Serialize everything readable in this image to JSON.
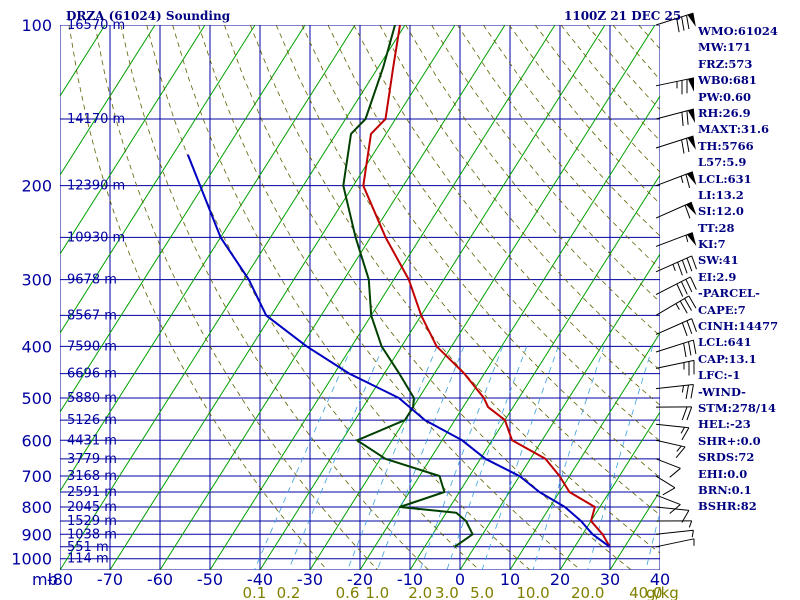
{
  "header": {
    "title": "DRZA (61024) Sounding",
    "time": "1100Z 21 DEC 25"
  },
  "params": [
    "WMO:61024",
    "MW:171",
    "FRZ:573",
    "WB0:681",
    "PW:0.60",
    "RH:26.9",
    "MAXT:31.6",
    "TH:5766",
    "L57:5.9",
    "LCL:631",
    "LI:13.2",
    "SI:12.0",
    "TT:28",
    "KI:7",
    "SW:41",
    "EI:2.9",
    "-PARCEL-",
    "CAPE:7",
    "CINH:14477",
    "LCL:641",
    "CAP:13.1",
    "LFC:-1",
    "-WIND-",
    "STM:278/14",
    "HEL:-23",
    "SHR+:0.0",
    "SRDS:72",
    "EHI:0.0",
    "BRN:0.1",
    "BSHR:82"
  ],
  "colors": {
    "grid": "#0000a0",
    "isotherm": "#00a000",
    "dry_adiabat": "#606000",
    "mixing_ratio": "#3aa0e0",
    "temperature": "#c00000",
    "dewpoint": "#004000",
    "parcel": "#0000c0",
    "axis_text": "#0000a0",
    "mixing_label": "#808000"
  },
  "chart_data": {
    "type": "skew-t",
    "x_unit_label": "mb",
    "pressure_ticks": [
      "100",
      "200",
      "300",
      "400",
      "500",
      "600",
      "700",
      "800",
      "900",
      "1000"
    ],
    "temp_ticks": [
      "-80",
      "-70",
      "-60",
      "-50",
      "-40",
      "-30",
      "-20",
      "-10",
      "0",
      "10",
      "20",
      "30",
      "40"
    ],
    "temp_range": [
      -80,
      40
    ],
    "mixing_ratio_labels": [
      "0.1",
      "0.2",
      "0.6",
      "1.0",
      "2.0",
      "3.0",
      "5.0",
      "10.0",
      "20.0",
      "40.0"
    ],
    "mixing_ratio_unit": "g/kg",
    "height_labels": [
      {
        "p": 100,
        "label": "16570 m"
      },
      {
        "p": 150,
        "label": "14170 m"
      },
      {
        "p": 200,
        "label": "12390 m"
      },
      {
        "p": 250,
        "label": "10930 m"
      },
      {
        "p": 300,
        "label": "9678 m"
      },
      {
        "p": 350,
        "label": "8567 m"
      },
      {
        "p": 400,
        "label": "7590 m"
      },
      {
        "p": 450,
        "label": "6696 m"
      },
      {
        "p": 500,
        "label": "5880 m"
      },
      {
        "p": 550,
        "label": "5126 m"
      },
      {
        "p": 600,
        "label": "4431 m"
      },
      {
        "p": 650,
        "label": "3779 m"
      },
      {
        "p": 700,
        "label": "3168 m"
      },
      {
        "p": 750,
        "label": "2591 m"
      },
      {
        "p": 800,
        "label": "2045 m"
      },
      {
        "p": 850,
        "label": "1529 m"
      },
      {
        "p": 900,
        "label": "1038 m"
      },
      {
        "p": 950,
        "label": "551 m"
      },
      {
        "p": 1000,
        "label": "114 m"
      }
    ],
    "series": [
      {
        "key": "temperature",
        "points": [
          [
            100,
            -81
          ],
          [
            120,
            -77
          ],
          [
            150,
            -72
          ],
          [
            160,
            -73
          ],
          [
            200,
            -68
          ],
          [
            250,
            -57
          ],
          [
            300,
            -47
          ],
          [
            350,
            -40
          ],
          [
            400,
            -33
          ],
          [
            450,
            -24
          ],
          [
            500,
            -17
          ],
          [
            520,
            -15
          ],
          [
            550,
            -10
          ],
          [
            600,
            -6
          ],
          [
            650,
            3
          ],
          [
            700,
            8
          ],
          [
            750,
            12
          ],
          [
            800,
            19
          ],
          [
            850,
            20
          ],
          [
            900,
            24
          ],
          [
            950,
            27
          ]
        ]
      },
      {
        "key": "dewpoint",
        "points": [
          [
            100,
            -82
          ],
          [
            120,
            -79
          ],
          [
            150,
            -76
          ],
          [
            160,
            -77
          ],
          [
            200,
            -72
          ],
          [
            250,
            -63
          ],
          [
            300,
            -55
          ],
          [
            350,
            -50
          ],
          [
            400,
            -44
          ],
          [
            450,
            -37
          ],
          [
            500,
            -31
          ],
          [
            520,
            -30
          ],
          [
            550,
            -30
          ],
          [
            600,
            -37
          ],
          [
            650,
            -29
          ],
          [
            700,
            -16
          ],
          [
            750,
            -13
          ],
          [
            800,
            -20
          ],
          [
            820,
            -8
          ],
          [
            850,
            -5
          ],
          [
            900,
            -2
          ],
          [
            950,
            -4
          ]
        ]
      },
      {
        "key": "parcel",
        "points": [
          [
            175,
            -107
          ],
          [
            250,
            -90
          ],
          [
            300,
            -79
          ],
          [
            350,
            -71
          ],
          [
            400,
            -59
          ],
          [
            450,
            -47
          ],
          [
            500,
            -34
          ],
          [
            550,
            -26
          ],
          [
            600,
            -16
          ],
          [
            650,
            -9
          ],
          [
            700,
            0
          ],
          [
            750,
            6
          ],
          [
            800,
            13
          ],
          [
            850,
            18
          ],
          [
            900,
            22
          ],
          [
            950,
            27
          ]
        ]
      }
    ],
    "wind_barbs": [
      {
        "p": 100,
        "dir": 260,
        "speed": 80
      },
      {
        "p": 130,
        "dir": 270,
        "speed": 75
      },
      {
        "p": 150,
        "dir": 265,
        "speed": 70
      },
      {
        "p": 170,
        "dir": 260,
        "speed": 70
      },
      {
        "p": 200,
        "dir": 255,
        "speed": 65
      },
      {
        "p": 230,
        "dir": 250,
        "speed": 60
      },
      {
        "p": 260,
        "dir": 255,
        "speed": 55
      },
      {
        "p": 290,
        "dir": 250,
        "speed": 45
      },
      {
        "p": 320,
        "dir": 245,
        "speed": 40
      },
      {
        "p": 350,
        "dir": 240,
        "speed": 35
      },
      {
        "p": 380,
        "dir": 250,
        "speed": 30
      },
      {
        "p": 410,
        "dir": 260,
        "speed": 30
      },
      {
        "p": 440,
        "dir": 270,
        "speed": 25
      },
      {
        "p": 480,
        "dir": 280,
        "speed": 25
      },
      {
        "p": 520,
        "dir": 290,
        "speed": 20
      },
      {
        "p": 560,
        "dir": 300,
        "speed": 15
      },
      {
        "p": 600,
        "dir": 310,
        "speed": 15
      },
      {
        "p": 650,
        "dir": 320,
        "speed": 10
      },
      {
        "p": 700,
        "dir": 330,
        "speed": 10
      },
      {
        "p": 760,
        "dir": 320,
        "speed": 10
      },
      {
        "p": 800,
        "dir": 300,
        "speed": 10
      },
      {
        "p": 850,
        "dir": 290,
        "speed": 5
      },
      {
        "p": 900,
        "dir": 280,
        "speed": 5
      },
      {
        "p": 950,
        "dir": 270,
        "speed": 5
      }
    ]
  }
}
